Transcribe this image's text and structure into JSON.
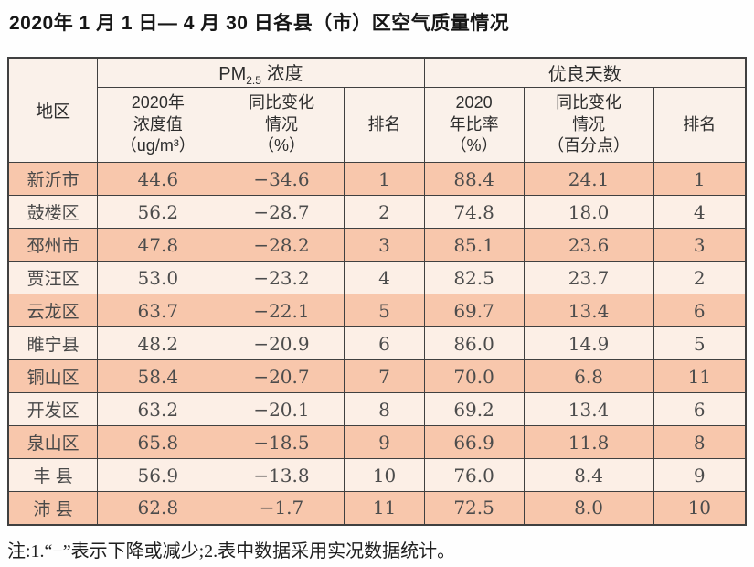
{
  "title": "2020年 1 月 1 日— 4 月 30 日各县（市）区空气质量情况",
  "footnote": "注:1.“−”表示下降或减少;2.表中数据采用实况数据统计。",
  "colors": {
    "row_odd_bg": "#f8c7ac",
    "row_even_bg": "#fcefe6",
    "header_bg": "#faf1ea",
    "border": "#404040"
  },
  "table": {
    "header": {
      "region": "地区",
      "pm_group_prefix": "PM",
      "pm_group_sub": "2.5",
      "pm_group_suffix": " 浓度",
      "good_group": "优良天数",
      "pm_value_l1": "2020年",
      "pm_value_l2": "浓度值",
      "pm_value_l3": "（ug/m³）",
      "pm_change_l1": "同比变化",
      "pm_change_l2": "情况",
      "pm_change_l3": "（%）",
      "pm_rank": "排名",
      "rate_l1": "2020",
      "rate_l2": "年比率",
      "rate_l3": "（%）",
      "rate_change_l1": "同比变化",
      "rate_change_l2": "情况",
      "rate_change_l3": "（百分点）",
      "rate_rank": "排名"
    },
    "rows": [
      {
        "region": "新沂市",
        "pm_value": "44.6",
        "pm_change": "−34.6",
        "pm_rank": "1",
        "rate": "88.4",
        "rate_change": "24.1",
        "rate_rank": "1"
      },
      {
        "region": "鼓楼区",
        "pm_value": "56.2",
        "pm_change": "−28.7",
        "pm_rank": "2",
        "rate": "74.8",
        "rate_change": "18.0",
        "rate_rank": "4"
      },
      {
        "region": "邳州市",
        "pm_value": "47.8",
        "pm_change": "−28.2",
        "pm_rank": "3",
        "rate": "85.1",
        "rate_change": "23.6",
        "rate_rank": "3"
      },
      {
        "region": "贾汪区",
        "pm_value": "53.0",
        "pm_change": "−23.2",
        "pm_rank": "4",
        "rate": "82.5",
        "rate_change": "23.7",
        "rate_rank": "2"
      },
      {
        "region": "云龙区",
        "pm_value": "63.7",
        "pm_change": "−22.1",
        "pm_rank": "5",
        "rate": "69.7",
        "rate_change": "13.4",
        "rate_rank": "6"
      },
      {
        "region": "睢宁县",
        "pm_value": "48.2",
        "pm_change": "−20.9",
        "pm_rank": "6",
        "rate": "86.0",
        "rate_change": "14.9",
        "rate_rank": "5"
      },
      {
        "region": "铜山区",
        "pm_value": "58.4",
        "pm_change": "−20.7",
        "pm_rank": "7",
        "rate": "70.0",
        "rate_change": "6.8",
        "rate_rank": "11"
      },
      {
        "region": "开发区",
        "pm_value": "63.2",
        "pm_change": "−20.1",
        "pm_rank": "8",
        "rate": "69.2",
        "rate_change": "13.4",
        "rate_rank": "6"
      },
      {
        "region": "泉山区",
        "pm_value": "65.8",
        "pm_change": "−18.5",
        "pm_rank": "9",
        "rate": "66.9",
        "rate_change": "11.8",
        "rate_rank": "8"
      },
      {
        "region": "丰 县",
        "pm_value": "56.9",
        "pm_change": "−13.8",
        "pm_rank": "10",
        "rate": "76.0",
        "rate_change": "8.4",
        "rate_rank": "9"
      },
      {
        "region": "沛 县",
        "pm_value": "62.8",
        "pm_change": "−1.7",
        "pm_rank": "11",
        "rate": "72.5",
        "rate_change": "8.0",
        "rate_rank": "10"
      }
    ]
  }
}
